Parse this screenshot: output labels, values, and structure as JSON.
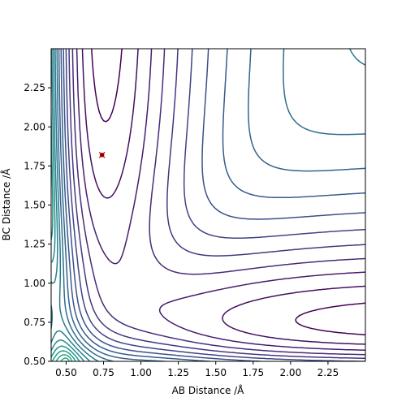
{
  "chart_data": {
    "type": "contour",
    "title": "",
    "xlabel": "AB Distance /Å",
    "ylabel": "BC Distance /Å",
    "xlim": [
      0.4,
      2.5
    ],
    "ylim": [
      0.5,
      2.5
    ],
    "x_ticks": [
      0.5,
      0.75,
      1.0,
      1.25,
      1.5,
      1.75,
      2.0,
      2.25
    ],
    "x_tick_labels": [
      "0.50",
      "0.75",
      "1.00",
      "1.25",
      "1.50",
      "1.75",
      "2.00",
      "2.25"
    ],
    "y_ticks": [
      0.5,
      0.75,
      1.0,
      1.25,
      1.5,
      1.75,
      2.0,
      2.25
    ],
    "y_tick_labels": [
      "0.50",
      "0.75",
      "1.00",
      "1.25",
      "1.50",
      "1.75",
      "2.00",
      "2.25"
    ],
    "colormap": "viridis",
    "contour_level_count": 26,
    "valley_y": 0.74,
    "asymptote_x": 0.74,
    "markers": [
      {
        "shape": "x",
        "x": 0.74,
        "y": 1.82,
        "color": "#d62728"
      },
      {
        "shape": "o",
        "x": 0.74,
        "y": 1.82,
        "color": "#8b0000"
      }
    ]
  }
}
